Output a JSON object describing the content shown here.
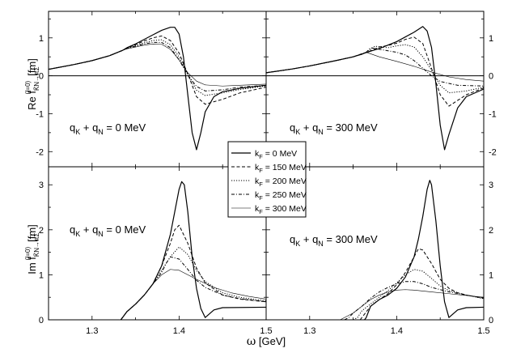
{
  "chart_data": {
    "type": "line",
    "grid": false,
    "xlabel_main": "ω",
    "xlabel_unit": " [GeV]",
    "xlim": [
      1.25,
      1.5
    ],
    "x_ticks": [
      "1.3",
      "1.4",
      "1.5"
    ],
    "top": {
      "ylabel_main": "Re f",
      "ylabel_sup": "(I=0)",
      "ylabel_sub": "K̄N→πΣ",
      "ylabel_unit": "[fm]",
      "ylim": [
        -2.4,
        1.7
      ],
      "y_ticks": [
        "-2",
        "-1",
        "0",
        "1"
      ]
    },
    "bottom": {
      "ylabel_main": "Im f",
      "ylabel_sup": "(I=0)",
      "ylabel_sub": "K̄N→πΣ",
      "ylabel_unit": "[fm]",
      "ylim": [
        0,
        3.4
      ],
      "y_ticks": [
        "0",
        "1",
        "2",
        "3"
      ]
    },
    "legend": {
      "placement": "center",
      "entries": [
        {
          "base": "k",
          "sub": "F",
          "rest": " = 0 MeV",
          "style": "solid"
        },
        {
          "base": "k",
          "sub": "F",
          "rest": " = 150 MeV",
          "style": "dash"
        },
        {
          "base": "k",
          "sub": "F",
          "rest": " = 200 MeV",
          "style": "dot"
        },
        {
          "base": "k",
          "sub": "F",
          "rest": " = 250 MeV",
          "style": "dashdot"
        },
        {
          "base": "k",
          "sub": "F",
          "rest": " = 300 MeV",
          "style": "thin"
        }
      ]
    },
    "panels": [
      {
        "id": "re-0",
        "quantity": "Re",
        "annotation": {
          "q1": "q",
          "s1": "K",
          "mid": " + q",
          "s2": "N",
          "rest": " = 0 MeV"
        },
        "series": [
          {
            "style": "solid",
            "x": [
              1.25,
              1.28,
              1.3,
              1.32,
              1.335,
              1.34,
              1.35,
              1.36,
              1.37,
              1.38,
              1.39,
              1.395,
              1.4,
              1.405,
              1.41,
              1.415,
              1.42,
              1.425,
              1.43,
              1.44,
              1.45,
              1.47,
              1.5
            ],
            "y": [
              0.17,
              0.3,
              0.4,
              0.53,
              0.67,
              0.74,
              0.84,
              0.96,
              1.08,
              1.2,
              1.28,
              1.28,
              1.1,
              0.5,
              -0.5,
              -1.5,
              -1.95,
              -1.5,
              -0.95,
              -0.55,
              -0.42,
              -0.33,
              -0.25
            ]
          },
          {
            "style": "dash",
            "x": [
              1.25,
              1.28,
              1.3,
              1.32,
              1.335,
              1.34,
              1.35,
              1.36,
              1.37,
              1.38,
              1.39,
              1.4,
              1.41,
              1.42,
              1.43,
              1.45,
              1.47,
              1.5
            ],
            "y": [
              0.17,
              0.3,
              0.4,
              0.53,
              0.67,
              0.73,
              0.82,
              0.92,
              1.0,
              1.05,
              0.93,
              0.6,
              0.05,
              -0.55,
              -0.75,
              -0.62,
              -0.45,
              -0.3
            ]
          },
          {
            "style": "dot",
            "x": [
              1.25,
              1.28,
              1.3,
              1.32,
              1.335,
              1.34,
              1.35,
              1.36,
              1.37,
              1.38,
              1.39,
              1.4,
              1.41,
              1.42,
              1.43,
              1.45,
              1.47,
              1.5
            ],
            "y": [
              0.17,
              0.3,
              0.4,
              0.53,
              0.67,
              0.72,
              0.8,
              0.87,
              0.93,
              0.95,
              0.82,
              0.5,
              0.05,
              -0.38,
              -0.52,
              -0.45,
              -0.36,
              -0.27
            ]
          },
          {
            "style": "dashdot",
            "x": [
              1.25,
              1.28,
              1.3,
              1.32,
              1.335,
              1.34,
              1.35,
              1.36,
              1.37,
              1.38,
              1.39,
              1.4,
              1.41,
              1.42,
              1.43,
              1.45,
              1.47,
              1.5
            ],
            "y": [
              0.17,
              0.3,
              0.4,
              0.53,
              0.67,
              0.72,
              0.78,
              0.84,
              0.88,
              0.88,
              0.74,
              0.42,
              0.02,
              -0.28,
              -0.4,
              -0.37,
              -0.3,
              -0.25
            ]
          },
          {
            "style": "thin",
            "x": [
              1.25,
              1.28,
              1.3,
              1.32,
              1.335,
              1.34,
              1.35,
              1.36,
              1.37,
              1.38,
              1.39,
              1.4,
              1.41,
              1.42,
              1.43,
              1.45,
              1.47,
              1.5
            ],
            "y": [
              0.17,
              0.3,
              0.4,
              0.53,
              0.67,
              0.71,
              0.76,
              0.81,
              0.84,
              0.83,
              0.7,
              0.42,
              0.08,
              -0.14,
              -0.24,
              -0.27,
              -0.25,
              -0.22
            ]
          }
        ]
      },
      {
        "id": "re-300",
        "quantity": "Re",
        "annotation": {
          "q1": "q",
          "s1": "K",
          "mid": " + q",
          "s2": "N",
          "rest": " = 300 MeV"
        },
        "series": [
          {
            "style": "solid",
            "x": [
              1.25,
              1.28,
              1.3,
              1.33,
              1.35,
              1.37,
              1.38,
              1.4,
              1.42,
              1.43,
              1.435,
              1.44,
              1.445,
              1.45,
              1.455,
              1.46,
              1.47,
              1.48,
              1.5
            ],
            "y": [
              0.08,
              0.18,
              0.26,
              0.4,
              0.5,
              0.65,
              0.72,
              0.9,
              1.15,
              1.3,
              1.18,
              0.75,
              -0.2,
              -1.3,
              -1.95,
              -1.55,
              -0.85,
              -0.55,
              -0.35
            ]
          },
          {
            "style": "dash",
            "x": [
              1.25,
              1.28,
              1.3,
              1.33,
              1.35,
              1.37,
              1.38,
              1.39,
              1.4,
              1.41,
              1.42,
              1.43,
              1.44,
              1.45,
              1.46,
              1.48,
              1.5
            ],
            "y": [
              0.08,
              0.18,
              0.26,
              0.4,
              0.5,
              0.66,
              0.76,
              0.8,
              0.86,
              0.96,
              1.02,
              0.85,
              0.2,
              -0.5,
              -0.8,
              -0.5,
              -0.32
            ]
          },
          {
            "style": "dot",
            "x": [
              1.25,
              1.28,
              1.3,
              1.33,
              1.35,
              1.365,
              1.375,
              1.39,
              1.4,
              1.41,
              1.42,
              1.43,
              1.44,
              1.45,
              1.46,
              1.48,
              1.5
            ],
            "y": [
              0.08,
              0.18,
              0.26,
              0.4,
              0.5,
              0.62,
              0.78,
              0.74,
              0.79,
              0.82,
              0.76,
              0.5,
              0.15,
              -0.25,
              -0.45,
              -0.4,
              -0.3
            ]
          },
          {
            "style": "dashdot",
            "x": [
              1.25,
              1.28,
              1.3,
              1.33,
              1.35,
              1.365,
              1.37,
              1.38,
              1.39,
              1.4,
              1.41,
              1.42,
              1.43,
              1.44,
              1.45,
              1.47,
              1.5
            ],
            "y": [
              0.08,
              0.18,
              0.26,
              0.4,
              0.5,
              0.62,
              0.74,
              0.7,
              0.66,
              0.62,
              0.55,
              0.4,
              0.2,
              0.0,
              -0.15,
              -0.25,
              -0.27
            ]
          },
          {
            "style": "thin",
            "x": [
              1.25,
              1.28,
              1.3,
              1.33,
              1.35,
              1.36,
              1.365,
              1.37,
              1.38,
              1.4,
              1.42,
              1.44,
              1.46,
              1.48,
              1.5
            ],
            "y": [
              0.08,
              0.18,
              0.26,
              0.4,
              0.5,
              0.56,
              0.62,
              0.58,
              0.5,
              0.38,
              0.25,
              0.1,
              -0.03,
              -0.1,
              -0.14
            ]
          }
        ]
      },
      {
        "id": "im-0",
        "quantity": "Im",
        "annotation": {
          "q1": "q",
          "s1": "K",
          "mid": " + q",
          "s2": "N",
          "rest": " = 0 MeV"
        },
        "series": [
          {
            "style": "solid",
            "x": [
              1.333,
              1.335,
              1.34,
              1.35,
              1.36,
              1.37,
              1.38,
              1.39,
              1.395,
              1.4,
              1.403,
              1.406,
              1.41,
              1.415,
              1.42,
              1.425,
              1.43,
              1.44,
              1.45,
              1.5
            ],
            "y": [
              0,
              0.05,
              0.18,
              0.35,
              0.55,
              0.8,
              1.2,
              1.9,
              2.4,
              2.9,
              3.07,
              3.0,
              2.4,
              1.4,
              0.7,
              0.25,
              0.05,
              0.22,
              0.27,
              0.28
            ]
          },
          {
            "style": "dash",
            "x": [
              1.333,
              1.335,
              1.34,
              1.35,
              1.36,
              1.37,
              1.38,
              1.39,
              1.395,
              1.4,
              1.41,
              1.42,
              1.43,
              1.45,
              1.47,
              1.5
            ],
            "y": [
              0,
              0.05,
              0.18,
              0.35,
              0.55,
              0.8,
              1.2,
              1.7,
              2.0,
              2.1,
              1.7,
              1.15,
              0.82,
              0.55,
              0.46,
              0.4
            ]
          },
          {
            "style": "dot",
            "x": [
              1.333,
              1.335,
              1.34,
              1.35,
              1.36,
              1.37,
              1.38,
              1.39,
              1.4,
              1.41,
              1.42,
              1.43,
              1.45,
              1.47,
              1.5
            ],
            "y": [
              0,
              0.05,
              0.18,
              0.35,
              0.55,
              0.8,
              1.1,
              1.4,
              1.62,
              1.45,
              1.1,
              0.85,
              0.6,
              0.5,
              0.42
            ]
          },
          {
            "style": "dashdot",
            "x": [
              1.333,
              1.335,
              1.34,
              1.35,
              1.36,
              1.37,
              1.38,
              1.385,
              1.39,
              1.4,
              1.41,
              1.42,
              1.43,
              1.45,
              1.47,
              1.5
            ],
            "y": [
              0,
              0.05,
              0.18,
              0.35,
              0.55,
              0.8,
              1.05,
              1.25,
              1.4,
              1.35,
              1.12,
              0.88,
              0.72,
              0.55,
              0.47,
              0.4
            ]
          },
          {
            "style": "thin",
            "x": [
              1.333,
              1.335,
              1.34,
              1.35,
              1.36,
              1.37,
              1.38,
              1.39,
              1.4,
              1.41,
              1.42,
              1.44,
              1.46,
              1.48,
              1.5
            ],
            "y": [
              0,
              0.05,
              0.18,
              0.35,
              0.55,
              0.8,
              1.0,
              1.12,
              1.1,
              1.0,
              0.9,
              0.72,
              0.6,
              0.52,
              0.46
            ]
          }
        ]
      },
      {
        "id": "im-300",
        "quantity": "Im",
        "annotation": {
          "q1": "q",
          "s1": "K",
          "mid": " + q",
          "s2": "N",
          "rest": " = 300 MeV"
        },
        "series": [
          {
            "style": "solid",
            "x": [
              1.363,
              1.365,
              1.37,
              1.38,
              1.39,
              1.4,
              1.41,
              1.42,
              1.425,
              1.43,
              1.435,
              1.438,
              1.44,
              1.445,
              1.45,
              1.455,
              1.46,
              1.47,
              1.48,
              1.5
            ],
            "y": [
              0,
              0.05,
              0.3,
              0.45,
              0.55,
              0.7,
              0.95,
              1.4,
              1.8,
              2.3,
              2.9,
              3.1,
              3.0,
              2.2,
              1.2,
              0.4,
              0.05,
              0.22,
              0.27,
              0.28
            ]
          },
          {
            "style": "dash",
            "x": [
              1.358,
              1.36,
              1.37,
              1.38,
              1.39,
              1.4,
              1.41,
              1.42,
              1.425,
              1.43,
              1.44,
              1.45,
              1.46,
              1.47,
              1.48,
              1.5
            ],
            "y": [
              0,
              0.05,
              0.3,
              0.45,
              0.58,
              0.78,
              1.05,
              1.4,
              1.58,
              1.55,
              1.25,
              0.9,
              0.7,
              0.6,
              0.55,
              0.48
            ]
          },
          {
            "style": "dot",
            "x": [
              1.35,
              1.355,
              1.36,
              1.37,
              1.38,
              1.39,
              1.4,
              1.41,
              1.42,
              1.43,
              1.44,
              1.45,
              1.46,
              1.48,
              1.5
            ],
            "y": [
              0,
              0.05,
              0.2,
              0.35,
              0.5,
              0.65,
              0.82,
              1.0,
              1.12,
              1.08,
              0.92,
              0.75,
              0.65,
              0.55,
              0.47
            ]
          },
          {
            "style": "dashdot",
            "x": [
              1.34,
              1.345,
              1.35,
              1.36,
              1.37,
              1.38,
              1.39,
              1.4,
              1.41,
              1.42,
              1.43,
              1.44,
              1.46,
              1.48,
              1.5
            ],
            "y": [
              0,
              0.05,
              0.15,
              0.3,
              0.48,
              0.62,
              0.72,
              0.8,
              0.85,
              0.85,
              0.8,
              0.72,
              0.62,
              0.55,
              0.48
            ]
          },
          {
            "style": "thin",
            "x": [
              1.335,
              1.34,
              1.35,
              1.36,
              1.37,
              1.38,
              1.39,
              1.4,
              1.41,
              1.42,
              1.44,
              1.46,
              1.48,
              1.5
            ],
            "y": [
              0,
              0.05,
              0.15,
              0.3,
              0.45,
              0.55,
              0.62,
              0.66,
              0.67,
              0.66,
              0.62,
              0.58,
              0.54,
              0.5
            ]
          }
        ]
      }
    ]
  }
}
